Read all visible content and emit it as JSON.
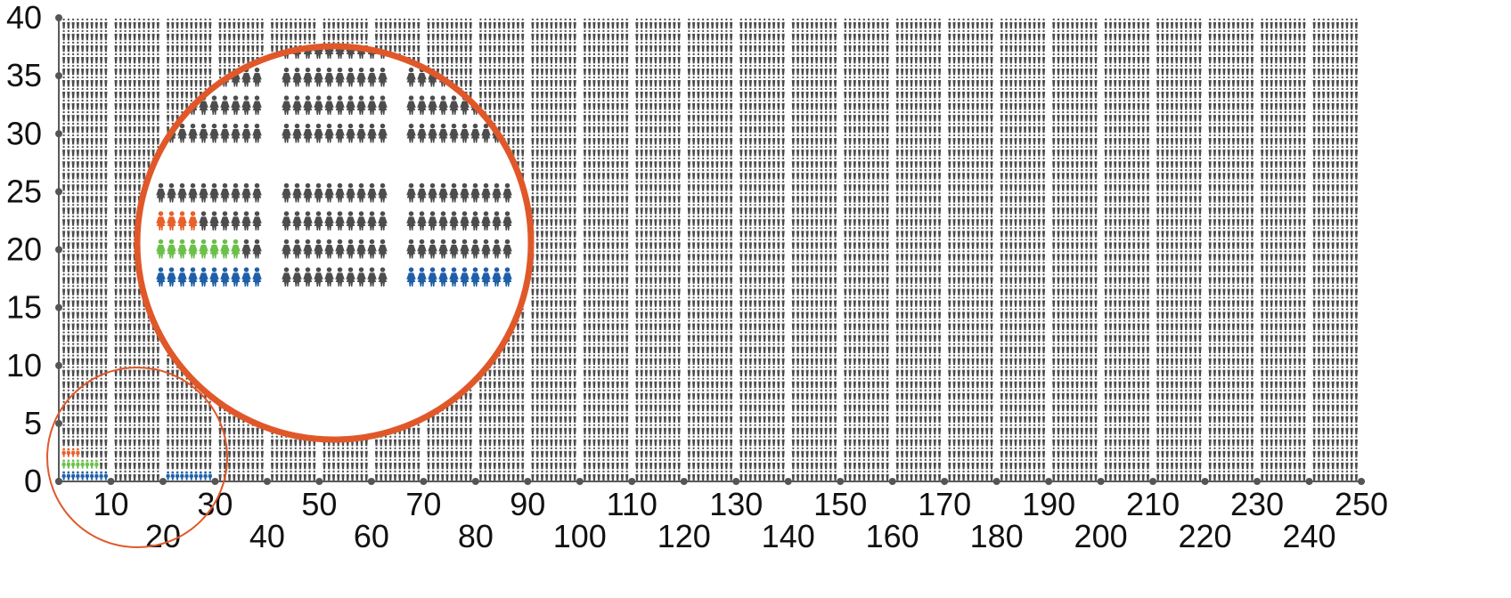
{
  "chart_data": {
    "type": "pictogram",
    "title": "",
    "xlabel": "",
    "ylabel": "",
    "xlim": [
      0,
      250
    ],
    "ylim": [
      0,
      40
    ],
    "x_ticks": [
      10,
      20,
      30,
      40,
      50,
      60,
      70,
      80,
      90,
      100,
      110,
      120,
      130,
      140,
      150,
      160,
      170,
      180,
      190,
      200,
      210,
      220,
      230,
      240,
      250
    ],
    "y_ticks": [
      0,
      5,
      10,
      15,
      20,
      25,
      30,
      35,
      40
    ],
    "icon": "person-icon",
    "icons_per_row_per_block": 10,
    "blocks": 25,
    "rows": 40,
    "total_icons": 10000,
    "highlighted_rows": [
      {
        "row": 1,
        "color": "#1f5fa8",
        "x_ranges": [
          [
            0,
            10
          ],
          [
            20,
            30
          ]
        ]
      },
      {
        "row": 2,
        "color": "#6cc04a",
        "x_ranges": [
          [
            0,
            8
          ]
        ]
      },
      {
        "row": 3,
        "color": "#e8602a",
        "x_ranges": [
          [
            0,
            4
          ]
        ]
      }
    ],
    "base_color": "#4d4d4d",
    "grid": false,
    "legend": "none",
    "magnifier": {
      "present": true,
      "color": "#e0582a",
      "region_x": [
        0,
        30
      ],
      "region_y": [
        0,
        10
      ]
    }
  }
}
